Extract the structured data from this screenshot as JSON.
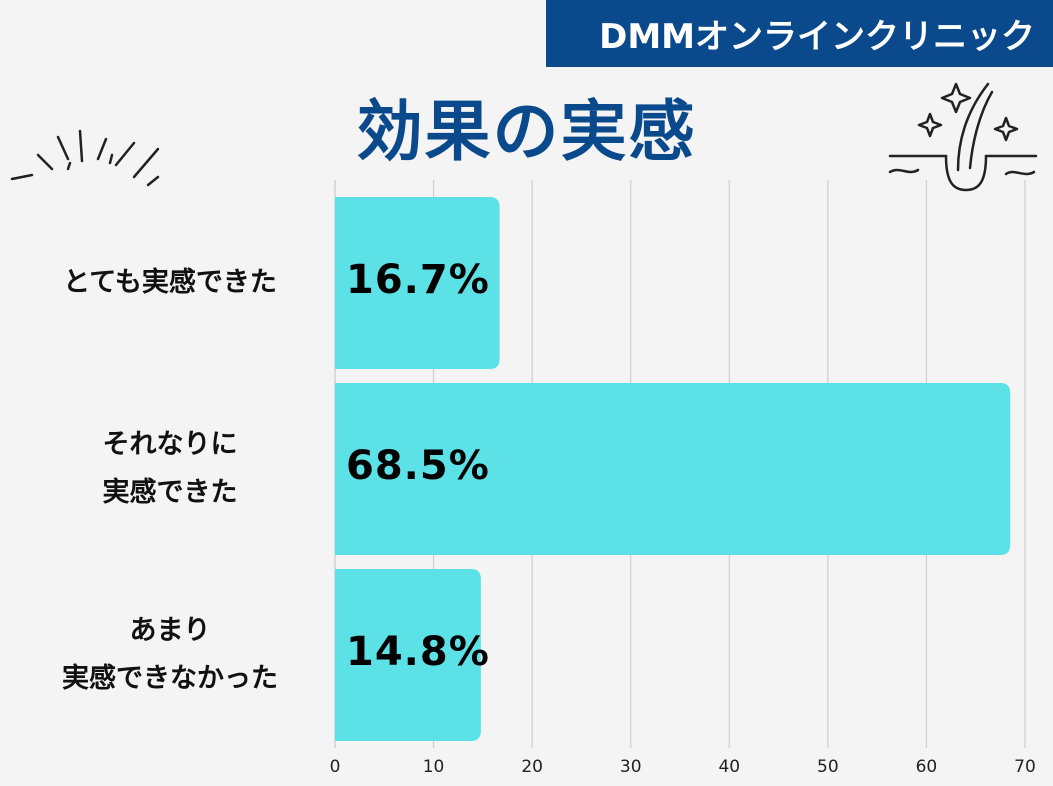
{
  "brand": {
    "name": "DMMオンラインクリニック"
  },
  "title": "効果の実感",
  "icons": {
    "left_decoration": "sparkle-burst-lines",
    "right_decoration": "hair-follicle-sparkle-icon"
  },
  "colors": {
    "bar": "#5ce1e6",
    "brand": "#0a4a8c",
    "grid": "#cfcfcf",
    "background": "#f4f4f4"
  },
  "chart_data": {
    "type": "bar",
    "orientation": "horizontal",
    "categories": [
      "とても実感できた",
      "それなりに\n実感できた",
      "あまり\n実感できなかった"
    ],
    "values": [
      16.7,
      68.5,
      14.8
    ],
    "value_labels": [
      "16.7%",
      "68.5%",
      "14.8%"
    ],
    "xlim": [
      0,
      70
    ],
    "xticks": [
      "0",
      "10",
      "20",
      "30",
      "40",
      "50",
      "60",
      "70"
    ],
    "grid": true,
    "legend": "none"
  }
}
